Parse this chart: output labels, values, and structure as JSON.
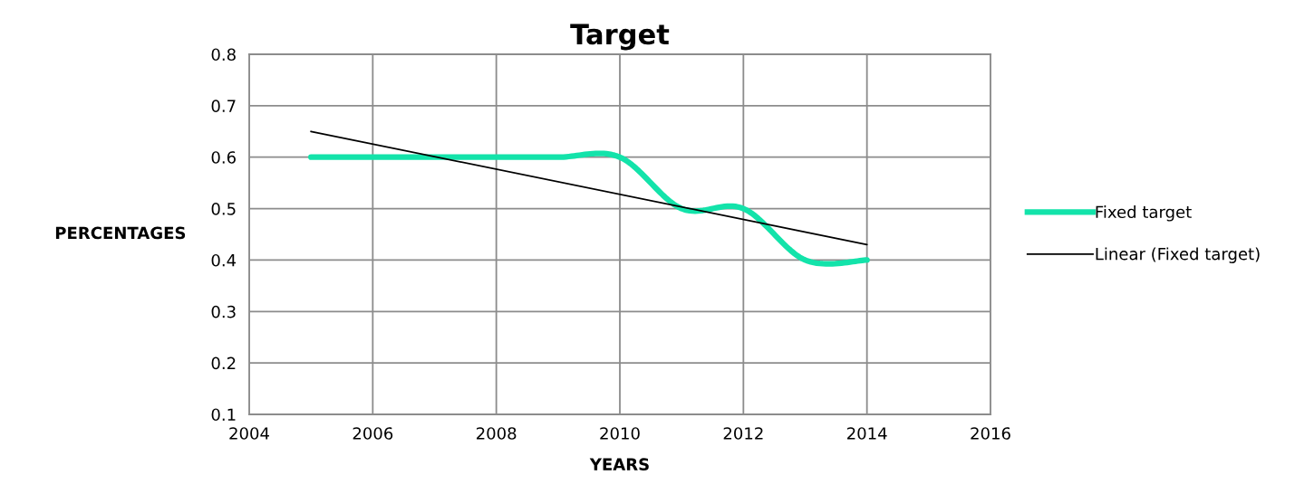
{
  "chart_data": {
    "type": "line",
    "title": "Target",
    "xlabel": "YEARS",
    "ylabel": "PERCENTAGES",
    "x": [
      2005,
      2006,
      2007,
      2008,
      2009,
      2010,
      2011,
      2012,
      2013,
      2014
    ],
    "series": [
      {
        "name": "Fixed target",
        "color": "#13e3aa",
        "values": [
          0.6,
          0.6,
          0.6,
          0.6,
          0.6,
          0.6,
          0.5,
          0.5,
          0.4,
          0.4
        ]
      },
      {
        "name": "Linear (Fixed target)",
        "type": "line",
        "color": "#000000",
        "x": [
          2005,
          2014
        ],
        "values": [
          0.65,
          0.43
        ]
      }
    ],
    "xlim": [
      2004,
      2016
    ],
    "xticks": [
      2004,
      2006,
      2008,
      2010,
      2012,
      2014,
      2016
    ],
    "ylim": [
      0.1,
      0.8
    ],
    "yticks": [
      0.1,
      0.2,
      0.3,
      0.4,
      0.5,
      0.6,
      0.7,
      0.8
    ],
    "grid": true,
    "legend": "right",
    "marker": "none",
    "line_style": "solid"
  }
}
